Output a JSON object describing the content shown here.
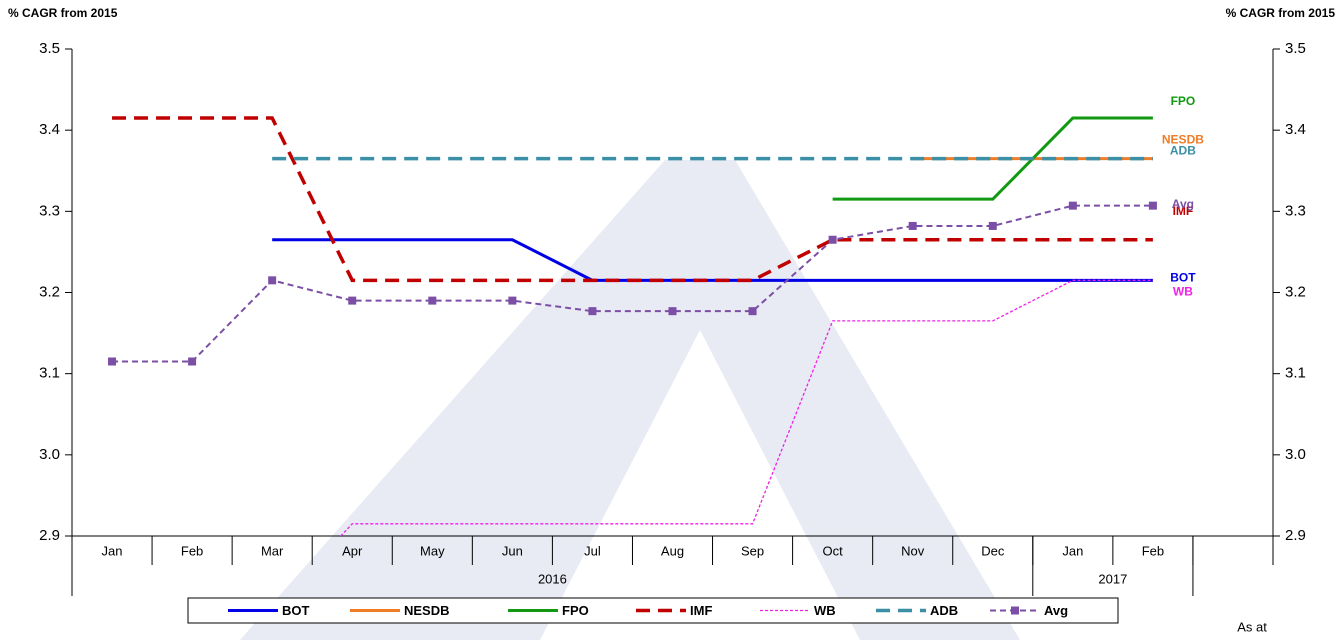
{
  "chart_data": {
    "type": "line",
    "y_title": "% CAGR from 2015",
    "y2_title": "% CAGR from 2015",
    "note": "As at",
    "categories": [
      "Jan",
      "Feb",
      "Mar",
      "Apr",
      "May",
      "Jun",
      "Jul",
      "Aug",
      "Sep",
      "Oct",
      "Nov",
      "Dec",
      "Jan",
      "Feb",
      null
    ],
    "x_groups": [
      {
        "label": "2016",
        "count": 12
      },
      {
        "label": "2017",
        "count": 2
      }
    ],
    "ylim": [
      2.9,
      3.5
    ],
    "yticks": [
      2.9,
      {
        "value": 3,
        "label": "3.0"
      },
      3.1,
      3.2,
      3.3,
      3.4,
      3.5
    ],
    "y2lim": [
      2.9,
      3.5
    ],
    "y2ticks": [
      2.9,
      {
        "value": 3,
        "label": "3.0"
      },
      3.1,
      3.2,
      3.3,
      3.4,
      3.5
    ],
    "grid": false,
    "legend": "bottom",
    "series": [
      {
        "name": "BOT",
        "color": "#0000e6",
        "dash": "solid",
        "values": [
          null,
          null,
          3.265,
          3.265,
          3.265,
          3.265,
          3.215,
          3.215,
          3.215,
          3.215,
          3.215,
          3.215,
          3.215,
          3.215,
          null
        ]
      },
      {
        "name": "NESDB",
        "color": "#f07c28",
        "dash": "solid",
        "values": [
          null,
          null,
          null,
          null,
          null,
          null,
          null,
          null,
          null,
          null,
          3.365,
          3.365,
          3.365,
          3.365,
          null
        ]
      },
      {
        "name": "FPO",
        "color": "#119a11",
        "dash": "solid",
        "values": [
          null,
          null,
          null,
          null,
          null,
          null,
          null,
          null,
          null,
          3.315,
          3.315,
          3.315,
          3.415,
          3.415,
          null
        ]
      },
      {
        "name": "IMF",
        "color": "#c00000",
        "dash": "dashed",
        "values": [
          3.415,
          3.415,
          3.415,
          3.215,
          3.215,
          3.215,
          3.215,
          3.215,
          3.215,
          3.265,
          3.265,
          3.265,
          3.265,
          3.265,
          null
        ]
      },
      {
        "name": "WB",
        "color": "#f020e6",
        "dash": "dotted",
        "values": [
          null,
          null,
          2.81,
          2.915,
          2.915,
          2.915,
          2.915,
          2.915,
          2.915,
          3.165,
          3.165,
          3.165,
          3.215,
          3.215,
          null
        ]
      },
      {
        "name": "ADB",
        "color": "#3b8fa6",
        "dash": "dashed",
        "values": [
          null,
          null,
          3.365,
          3.365,
          3.365,
          3.365,
          3.365,
          3.365,
          3.365,
          3.365,
          3.365,
          3.365,
          3.365,
          3.365,
          null
        ]
      },
      {
        "name": "Avg",
        "color": "#7b4fa6",
        "dash": "dashed-thin",
        "marker": "square",
        "values": [
          3.115,
          3.115,
          3.215,
          3.19,
          3.19,
          3.19,
          3.177,
          3.177,
          3.177,
          3.265,
          3.282,
          3.282,
          3.307,
          3.307,
          null
        ]
      }
    ]
  }
}
